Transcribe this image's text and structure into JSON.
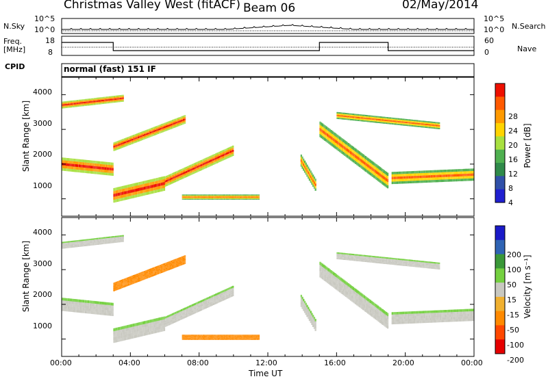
{
  "header": {
    "title": "Christmas Valley West (fitACF)",
    "beam": "Beam 06",
    "date": "02/May/2014"
  },
  "top_panels": {
    "nsky_label": "N.Sky",
    "nsearch_label": "N.Search",
    "freq_label_1": "Freq.",
    "freq_label_2": "[MHz]",
    "nave_label": "Nave",
    "cpid_label": "CPID",
    "program": "normal (fast) 151 IF",
    "noise_ticks_left": [
      "10^5",
      "10^0"
    ],
    "noise_ticks_right": [
      "10^5",
      "10^0"
    ],
    "freq_ticks": [
      "18",
      "8"
    ],
    "nave_ticks": [
      "60",
      "0"
    ]
  },
  "colors": {
    "power_scale": [
      "#2020d0",
      "#3050a8",
      "#2f8a4a",
      "#4fb050",
      "#a8e040",
      "#ffd400",
      "#ff9a00",
      "#ff5a00",
      "#ee1000"
    ],
    "velocity_scale": [
      "#1a1ac8",
      "#2f64b4",
      "#3a9838",
      "#74d040",
      "#c8c8c0",
      "#f0b030",
      "#ff8a00",
      "#ff4800",
      "#e60000"
    ]
  },
  "chart_data": [
    {
      "type": "heatmap",
      "title": "Power",
      "ylabel": "Slant Range [km]",
      "xlabel": "Time UT",
      "x_ticks": [
        "00:00",
        "04:00",
        "08:00",
        "12:00",
        "16:00",
        "20:00",
        "00:00"
      ],
      "y_ticks": [
        "1000",
        "2000",
        "3000",
        "4000"
      ],
      "ylim": [
        500,
        4500
      ],
      "colorbar_label": "Power [dB]",
      "colorbar_ticks": [
        "28",
        "24",
        "20",
        "16",
        "12",
        "8",
        "4"
      ],
      "colorbar_range": [
        0,
        30
      ]
    },
    {
      "type": "heatmap",
      "title": "Velocity",
      "ylabel": "Slant Range [km]",
      "xlabel": "Time UT",
      "x_ticks": [
        "00:00",
        "04:00",
        "08:00",
        "12:00",
        "16:00",
        "20:00",
        "00:00"
      ],
      "y_ticks": [
        "1000",
        "2000",
        "3000",
        "4000"
      ],
      "ylim": [
        500,
        4500
      ],
      "colorbar_label": "Velocity [m s⁻¹]",
      "colorbar_ticks": [
        "200",
        "100",
        "50",
        "15",
        "-15",
        "-50",
        "-100",
        "-200"
      ],
      "colorbar_range": [
        -250,
        250
      ]
    }
  ]
}
